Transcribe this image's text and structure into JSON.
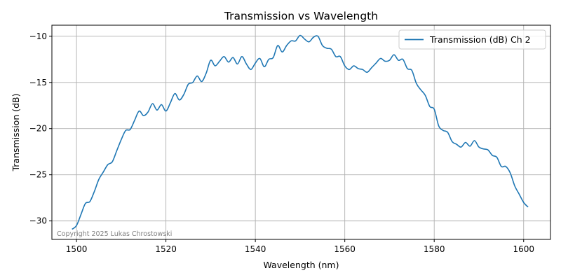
{
  "chart_data": {
    "type": "line",
    "title": "Transmission vs Wavelength",
    "xlabel": "Wavelength (nm)",
    "ylabel": "Transmission (dB)",
    "xlim": [
      1494.5,
      1606
    ],
    "ylim": [
      -32,
      -8.8
    ],
    "xticks": [
      1500,
      1520,
      1540,
      1560,
      1580,
      1600
    ],
    "yticks": [
      -10,
      -15,
      -20,
      -25,
      -30
    ],
    "xtick_labels": [
      "1500",
      "1520",
      "1540",
      "1560",
      "1580",
      "1600"
    ],
    "ytick_labels": [
      "−10",
      "−15",
      "−20",
      "−25",
      "−30"
    ],
    "grid": true,
    "legend_position": "top-right",
    "annotation": "Copyright 2025 Lukas Chrostowski",
    "series": [
      {
        "name": "Transmission (dB) Ch 2",
        "color": "#1f77b4",
        "x": [
          1499.0,
          1500.0,
          1501.0,
          1502.0,
          1503.0,
          1504.0,
          1505.0,
          1506.0,
          1507.0,
          1508.0,
          1509.0,
          1510.0,
          1511.0,
          1512.0,
          1513.0,
          1514.0,
          1515.0,
          1516.0,
          1517.0,
          1518.0,
          1519.0,
          1520.0,
          1521.0,
          1522.0,
          1523.0,
          1524.0,
          1525.0,
          1526.0,
          1527.0,
          1528.0,
          1529.0,
          1530.0,
          1531.0,
          1532.0,
          1533.0,
          1534.0,
          1535.0,
          1536.0,
          1537.0,
          1538.0,
          1539.0,
          1540.0,
          1541.0,
          1542.0,
          1543.0,
          1544.0,
          1545.0,
          1546.0,
          1547.0,
          1548.0,
          1549.0,
          1550.0,
          1551.0,
          1552.0,
          1553.0,
          1554.0,
          1555.0,
          1556.0,
          1557.0,
          1558.0,
          1559.0,
          1560.0,
          1561.0,
          1562.0,
          1563.0,
          1564.0,
          1565.0,
          1566.0,
          1567.0,
          1568.0,
          1569.0,
          1570.0,
          1571.0,
          1572.0,
          1573.0,
          1574.0,
          1575.0,
          1576.0,
          1577.0,
          1578.0,
          1579.0,
          1580.0,
          1581.0,
          1582.0,
          1583.0,
          1584.0,
          1585.0,
          1586.0,
          1587.0,
          1588.0,
          1589.0,
          1590.0,
          1591.0,
          1592.0,
          1593.0,
          1594.0,
          1595.0,
          1596.0,
          1597.0,
          1598.0,
          1599.0,
          1600.0,
          1601.0
        ],
        "y": [
          -30.9,
          -30.5,
          -29.3,
          -28.1,
          -27.9,
          -26.8,
          -25.5,
          -24.7,
          -23.9,
          -23.6,
          -22.4,
          -21.2,
          -20.2,
          -20.1,
          -19.1,
          -18.1,
          -18.6,
          -18.2,
          -17.3,
          -18.0,
          -17.4,
          -18.1,
          -17.2,
          -16.2,
          -16.9,
          -16.3,
          -15.2,
          -15.0,
          -14.3,
          -14.9,
          -14.0,
          -12.6,
          -13.2,
          -12.7,
          -12.2,
          -12.8,
          -12.3,
          -13.0,
          -12.2,
          -13.0,
          -13.6,
          -12.9,
          -12.4,
          -13.3,
          -12.5,
          -12.3,
          -11.0,
          -11.7,
          -11.0,
          -10.5,
          -10.5,
          -9.9,
          -10.3,
          -10.6,
          -10.1,
          -10.0,
          -11.0,
          -11.3,
          -11.4,
          -12.2,
          -12.2,
          -13.2,
          -13.6,
          -13.2,
          -13.5,
          -13.6,
          -13.9,
          -13.4,
          -12.9,
          -12.4,
          -12.7,
          -12.6,
          -12.0,
          -12.6,
          -12.5,
          -13.5,
          -13.7,
          -15.1,
          -15.8,
          -16.4,
          -17.6,
          -17.9,
          -19.7,
          -20.2,
          -20.4,
          -21.4,
          -21.7,
          -22.0,
          -21.5,
          -21.9,
          -21.3,
          -22.0,
          -22.2,
          -22.3,
          -22.9,
          -23.1,
          -24.1,
          -24.1,
          -24.8,
          -26.2,
          -27.1,
          -28.0,
          -28.5
        ]
      }
    ]
  }
}
